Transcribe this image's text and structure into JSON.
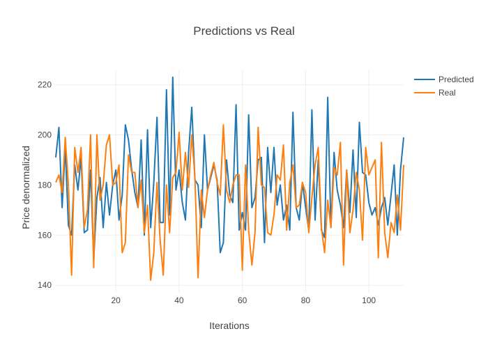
{
  "chart_data": {
    "type": "line",
    "title": "Predictions vs Real",
    "xlabel": "Iterations",
    "ylabel": "Price denormalized",
    "xlim": [
      1,
      111
    ],
    "ylim": [
      137,
      226
    ],
    "xticks": [
      20,
      40,
      60,
      80,
      100
    ],
    "yticks": [
      140,
      160,
      180,
      200,
      220
    ],
    "grid": true,
    "legend": "top-right",
    "x": [
      1,
      2,
      3,
      4,
      5,
      6,
      7,
      8,
      9,
      10,
      11,
      12,
      13,
      14,
      15,
      16,
      17,
      18,
      19,
      20,
      21,
      22,
      23,
      24,
      25,
      26,
      27,
      28,
      29,
      30,
      31,
      32,
      33,
      34,
      35,
      36,
      37,
      38,
      39,
      40,
      41,
      42,
      43,
      44,
      45,
      46,
      47,
      48,
      49,
      50,
      51,
      52,
      53,
      54,
      55,
      56,
      57,
      58,
      59,
      60,
      61,
      62,
      63,
      64,
      65,
      66,
      67,
      68,
      69,
      70,
      71,
      72,
      73,
      74,
      75,
      76,
      77,
      78,
      79,
      80,
      81,
      82,
      83,
      84,
      85,
      86,
      87,
      88,
      89,
      90,
      91,
      92,
      93,
      94,
      95,
      96,
      97,
      98,
      99,
      100,
      101,
      102,
      103,
      104,
      105,
      106,
      107,
      108,
      109,
      110,
      111
    ],
    "series": [
      {
        "name": "Predicted",
        "color": "#1f77b4",
        "values": [
          191,
          203,
          171,
          195,
          164,
          160,
          188,
          178,
          191,
          161,
          162,
          186,
          150,
          175,
          183,
          163,
          181,
          168,
          180,
          186,
          166,
          176,
          204,
          198,
          186,
          177,
          171,
          198,
          160,
          202,
          163,
          181,
          207,
          165,
          165,
          218,
          168,
          223,
          178,
          186,
          173,
          166,
          193,
          211,
          182,
          180,
          163,
          200,
          178,
          183,
          188,
          182,
          153,
          157,
          190,
          176,
          173,
          212,
          162,
          169,
          162,
          208,
          171,
          175,
          190,
          191,
          157,
          195,
          177,
          195,
          172,
          180,
          166,
          172,
          162,
          209,
          171,
          166,
          181,
          171,
          162,
          210,
          166,
          190,
          162,
          159,
          215,
          163,
          193,
          178,
          172,
          163,
          186,
          169,
          194,
          167,
          205,
          185,
          184,
          173,
          168,
          171,
          164,
          171,
          175,
          164,
          176,
          188,
          160,
          186,
          199
        ]
      },
      {
        "name": "Real",
        "color": "#ff7f0e",
        "values": [
          181,
          184,
          177,
          199,
          180,
          144,
          195,
          185,
          195,
          163,
          170,
          200,
          147,
          200,
          174,
          180,
          196,
          200,
          180,
          181,
          188,
          153,
          157,
          192,
          185,
          185,
          171,
          182,
          161,
          172,
          142,
          153,
          181,
          158,
          144,
          180,
          161,
          183,
          185,
          201,
          178,
          193,
          179,
          200,
          183,
          143,
          178,
          167,
          178,
          184,
          189,
          181,
          176,
          204,
          178,
          173,
          180,
          184,
          184,
          146,
          188,
          162,
          148,
          161,
          203,
          180,
          179,
          161,
          160,
          168,
          184,
          182,
          196,
          162,
          181,
          188,
          171,
          172,
          181,
          177,
          161,
          175,
          188,
          195,
          163,
          153,
          174,
          163,
          187,
          184,
          197,
          148,
          186,
          161,
          170,
          185,
          178,
          158,
          195,
          184,
          187,
          190,
          151,
          197,
          161,
          151,
          165,
          161,
          176,
          162,
          188
        ]
      }
    ]
  }
}
